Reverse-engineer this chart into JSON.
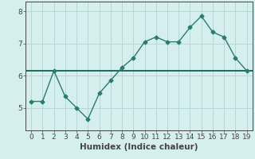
{
  "x": [
    0,
    1,
    2,
    3,
    4,
    5,
    6,
    7,
    8,
    9,
    10,
    11,
    12,
    13,
    14,
    15,
    16,
    17,
    18,
    19
  ],
  "y": [
    5.2,
    5.2,
    6.15,
    5.35,
    5.0,
    4.65,
    5.45,
    5.85,
    6.25,
    6.55,
    7.05,
    7.2,
    7.05,
    7.05,
    7.5,
    7.85,
    7.35,
    7.2,
    6.55,
    6.15
  ],
  "hline_y": 6.15,
  "line_color": "#2a7d6b",
  "hline_color": "#1a6b5a",
  "bg_color": "#d5efef",
  "grid_color": "#b8d8d8",
  "axis_color": "#444444",
  "xlabel": "Humidex (Indice chaleur)",
  "xlim": [
    -0.5,
    19.5
  ],
  "ylim": [
    4.3,
    8.3
  ],
  "yticks": [
    5,
    6,
    7,
    8
  ],
  "xticks": [
    0,
    1,
    2,
    3,
    4,
    5,
    6,
    7,
    8,
    9,
    10,
    11,
    12,
    13,
    14,
    15,
    16,
    17,
    18,
    19
  ],
  "marker": "D",
  "marker_size": 2.5,
  "linewidth": 1.0,
  "xlabel_fontsize": 7.5,
  "tick_fontsize": 6.5
}
